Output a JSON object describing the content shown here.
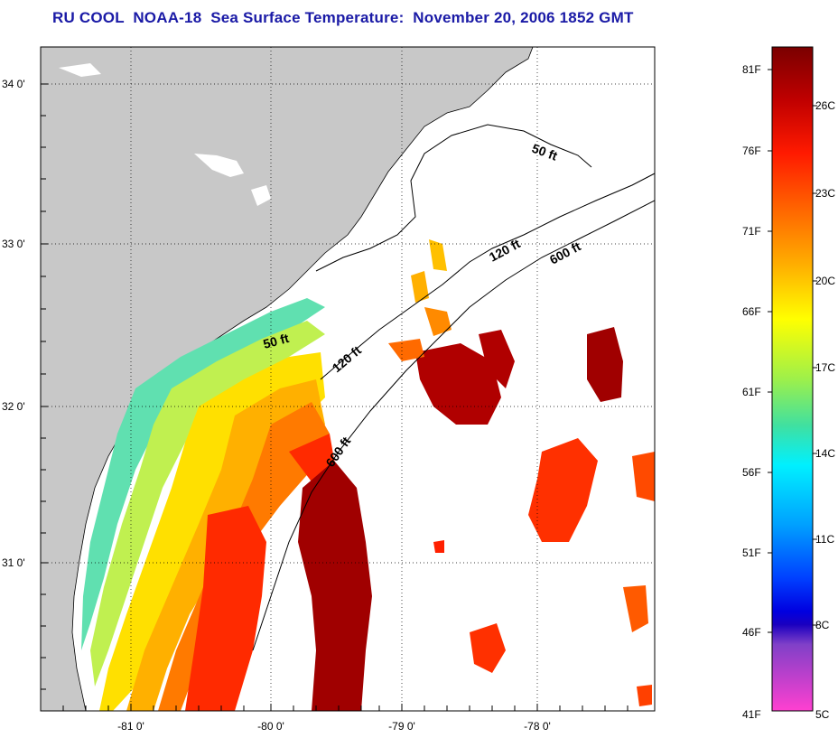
{
  "title": "RU COOL  NOAA-18  Sea Surface Temperature:  November 20, 2006 1852 GMT",
  "map": {
    "lon_labels": [
      "-81 0'",
      "-80 0'",
      "-79 0'",
      "-78 0'"
    ],
    "lat_labels": [
      "34 0'",
      "33 0'",
      "32 0'",
      "31 0'"
    ],
    "contours": [
      {
        "label": "50 ft"
      },
      {
        "label": "120 ft"
      },
      {
        "label": "600 ft"
      },
      {
        "label": "50 ft"
      },
      {
        "label": "120 ft"
      },
      {
        "label": "600 ft"
      }
    ],
    "colors": {
      "land": "#c8c8c8",
      "no_data": "#ffffff",
      "title": "#1a1aa6"
    }
  },
  "colorbar": {
    "fahrenheit_labels": [
      "81F",
      "76F",
      "71F",
      "66F",
      "61F",
      "56F",
      "51F",
      "46F",
      "41F"
    ],
    "celsius_labels": [
      "26C",
      "23C",
      "20C",
      "17C",
      "14C",
      "11C",
      "8C",
      "5C"
    ],
    "gradient_colors": [
      "#8b0000",
      "#e00000",
      "#ff5a00",
      "#ffb000",
      "#ffff00",
      "#a0f040",
      "#40e0a0",
      "#00ffff",
      "#00a0ff",
      "#0040ff",
      "#0000d0",
      "#8040c0",
      "#ff40c0"
    ]
  }
}
